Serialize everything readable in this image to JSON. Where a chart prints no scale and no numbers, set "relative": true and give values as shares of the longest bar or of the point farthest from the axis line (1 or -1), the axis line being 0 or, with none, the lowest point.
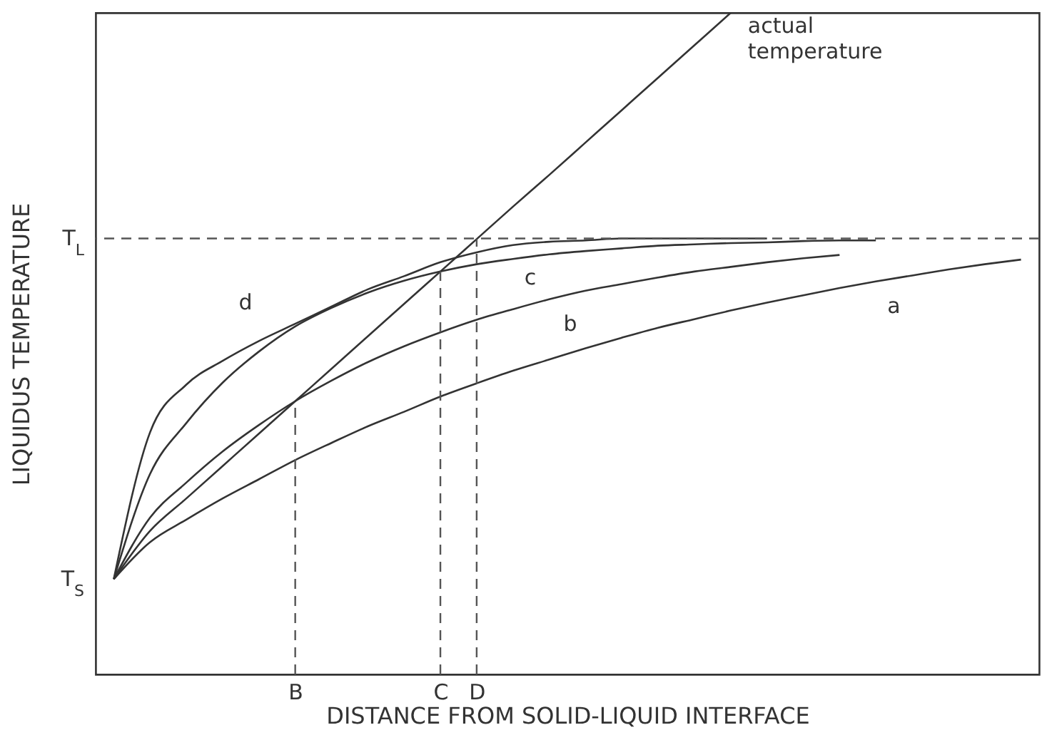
{
  "chart_data": {
    "type": "line",
    "relative": true,
    "xlabel": "DISTANCE FROM SOLID-LIQUID INTERFACE",
    "ylabel": "LIQUIDUS TEMPERATURE",
    "categories": [
      null,
      null,
      null,
      null,
      null,
      "B",
      null,
      null,
      null,
      "C",
      "D",
      null,
      null,
      null,
      null,
      null,
      null,
      null,
      null,
      null,
      null,
      null,
      null,
      null,
      null,
      null
    ],
    "grid": false,
    "marker": "none",
    "ref_lines": [
      {
        "axis": "y",
        "value": 0.659,
        "label": "T$_{L}$",
        "color": "#555555",
        "line_style": "dashed"
      },
      {
        "axis": "x",
        "value": "B",
        "color": "#555555",
        "line_style": "dashed"
      },
      {
        "axis": "x",
        "value": "C",
        "color": "#555555",
        "line_style": "dashed"
      },
      {
        "axis": "x",
        "value": "D",
        "color": "#555555",
        "line_style": "dashed"
      }
    ],
    "annotations": [
      "T$_{S}$"
    ],
    "series": [
      {
        "name": "actual temperature",
        "color": "#333333",
        "values": [
          0.144,
          0.217,
          0.266,
          0.315,
          0.364,
          0.413,
          0.462,
          0.511,
          0.56,
          0.609,
          0.658,
          0.707,
          0.755,
          0.804,
          0.853,
          0.902,
          0.951,
          1.0,
          null,
          null,
          null,
          null,
          null,
          null,
          null,
          null
        ]
      },
      {
        "name": "a",
        "color": "#333333",
        "values": [
          0.144,
          0.2,
          0.234,
          0.266,
          0.295,
          0.324,
          0.35,
          0.375,
          0.397,
          0.42,
          0.44,
          0.459,
          0.476,
          0.493,
          0.509,
          0.524,
          0.537,
          0.55,
          0.562,
          0.573,
          0.584,
          0.594,
          0.603,
          0.612,
          0.62,
          0.627
        ]
      },
      {
        "name": "b",
        "color": "#333333",
        "values": [
          0.144,
          0.237,
          0.29,
          0.337,
          0.377,
          0.413,
          0.444,
          0.472,
          0.496,
          0.517,
          0.536,
          0.552,
          0.567,
          0.58,
          0.59,
          0.6,
          0.609,
          0.616,
          0.623,
          0.629,
          0.634,
          null,
          null,
          null,
          null,
          null
        ]
      },
      {
        "name": "c",
        "color": "#333333",
        "values": [
          0.144,
          0.303,
          0.38,
          0.441,
          0.488,
          0.526,
          0.554,
          0.577,
          0.595,
          0.609,
          0.62,
          0.628,
          0.635,
          0.64,
          0.644,
          0.648,
          0.65,
          0.652,
          0.653,
          0.655,
          0.656,
          0.656,
          null,
          null,
          null,
          null
        ]
      },
      {
        "name": "d",
        "color": "#333333",
        "values": [
          0.144,
          0.366,
          0.438,
          0.474,
          0.504,
          0.53,
          0.556,
          0.582,
          0.602,
          0.623,
          0.638,
          0.649,
          0.654,
          0.656,
          0.659,
          0.659,
          0.659,
          0.659,
          0.659,
          null,
          null,
          null,
          null,
          null,
          null,
          null
        ]
      }
    ]
  }
}
